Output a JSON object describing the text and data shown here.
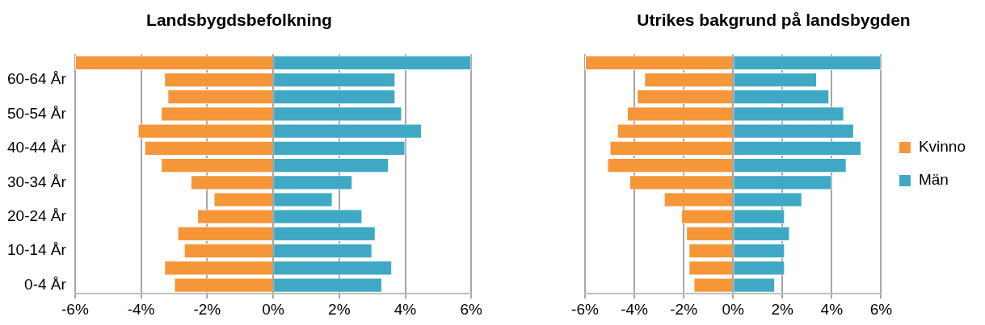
{
  "chart_data": [
    {
      "type": "bar",
      "title": "Landsbygdsbefolkning",
      "orientation": "horizontal",
      "stacked": true,
      "grid": "x",
      "categories": [
        null,
        "60-64 År",
        null,
        "50-54 År",
        null,
        "40-44 År",
        null,
        "30-34 År",
        null,
        "20-24 År",
        null,
        "10-14 År",
        null,
        "0-4 År"
      ],
      "series": [
        {
          "color": "#f59639",
          "values": [
            -6.0,
            -3.3,
            -3.2,
            -3.4,
            -4.1,
            -3.9,
            -3.4,
            -2.5,
            -1.8,
            -2.3,
            -2.9,
            -2.7,
            -3.3,
            -3.0
          ]
        },
        {
          "color": "#3fa9c5",
          "values": [
            6.0,
            3.7,
            3.7,
            3.9,
            4.5,
            4.0,
            3.5,
            2.4,
            1.8,
            2.7,
            3.1,
            3.0,
            3.6,
            3.3
          ]
        }
      ],
      "xlim": [
        -6,
        6
      ],
      "xticks": [
        {
          "value": -6,
          "label": "-6%"
        },
        {
          "value": -4,
          "label": "-4%"
        },
        {
          "value": -2,
          "label": "-2%"
        },
        {
          "value": 0,
          "label": "0%"
        },
        {
          "value": 2,
          "label": "2%"
        },
        {
          "value": 4,
          "label": "4%"
        },
        {
          "value": 6,
          "label": "6%"
        }
      ]
    },
    {
      "type": "bar",
      "title": "Utrikes bakgrund på landsbygden",
      "orientation": "horizontal",
      "stacked": true,
      "grid": "x",
      "legend": "right",
      "categories": [
        null,
        null,
        null,
        null,
        null,
        null,
        null,
        null,
        null,
        null,
        null,
        null,
        null,
        null
      ],
      "series": [
        {
          "name": "Kvinno",
          "color": "#f59639",
          "values": [
            -6.0,
            -3.6,
            -3.9,
            -4.3,
            -4.7,
            -5.0,
            -5.1,
            -4.2,
            -2.8,
            -2.1,
            -1.9,
            -1.8,
            -1.8,
            -1.6
          ]
        },
        {
          "name": "Män",
          "color": "#3fa9c5",
          "values": [
            6.0,
            3.4,
            3.9,
            4.5,
            4.9,
            5.2,
            4.6,
            4.0,
            2.8,
            2.1,
            2.3,
            2.1,
            2.1,
            1.7
          ]
        }
      ],
      "xlim": [
        -6,
        6
      ],
      "xticks": [
        {
          "value": -6,
          "label": "-6%"
        },
        {
          "value": -4,
          "label": "-4%"
        },
        {
          "value": -2,
          "label": "-2%"
        },
        {
          "value": 0,
          "label": "0%"
        },
        {
          "value": 2,
          "label": "2%"
        },
        {
          "value": 4,
          "label": "4%"
        },
        {
          "value": 6,
          "label": "6%"
        }
      ]
    }
  ]
}
